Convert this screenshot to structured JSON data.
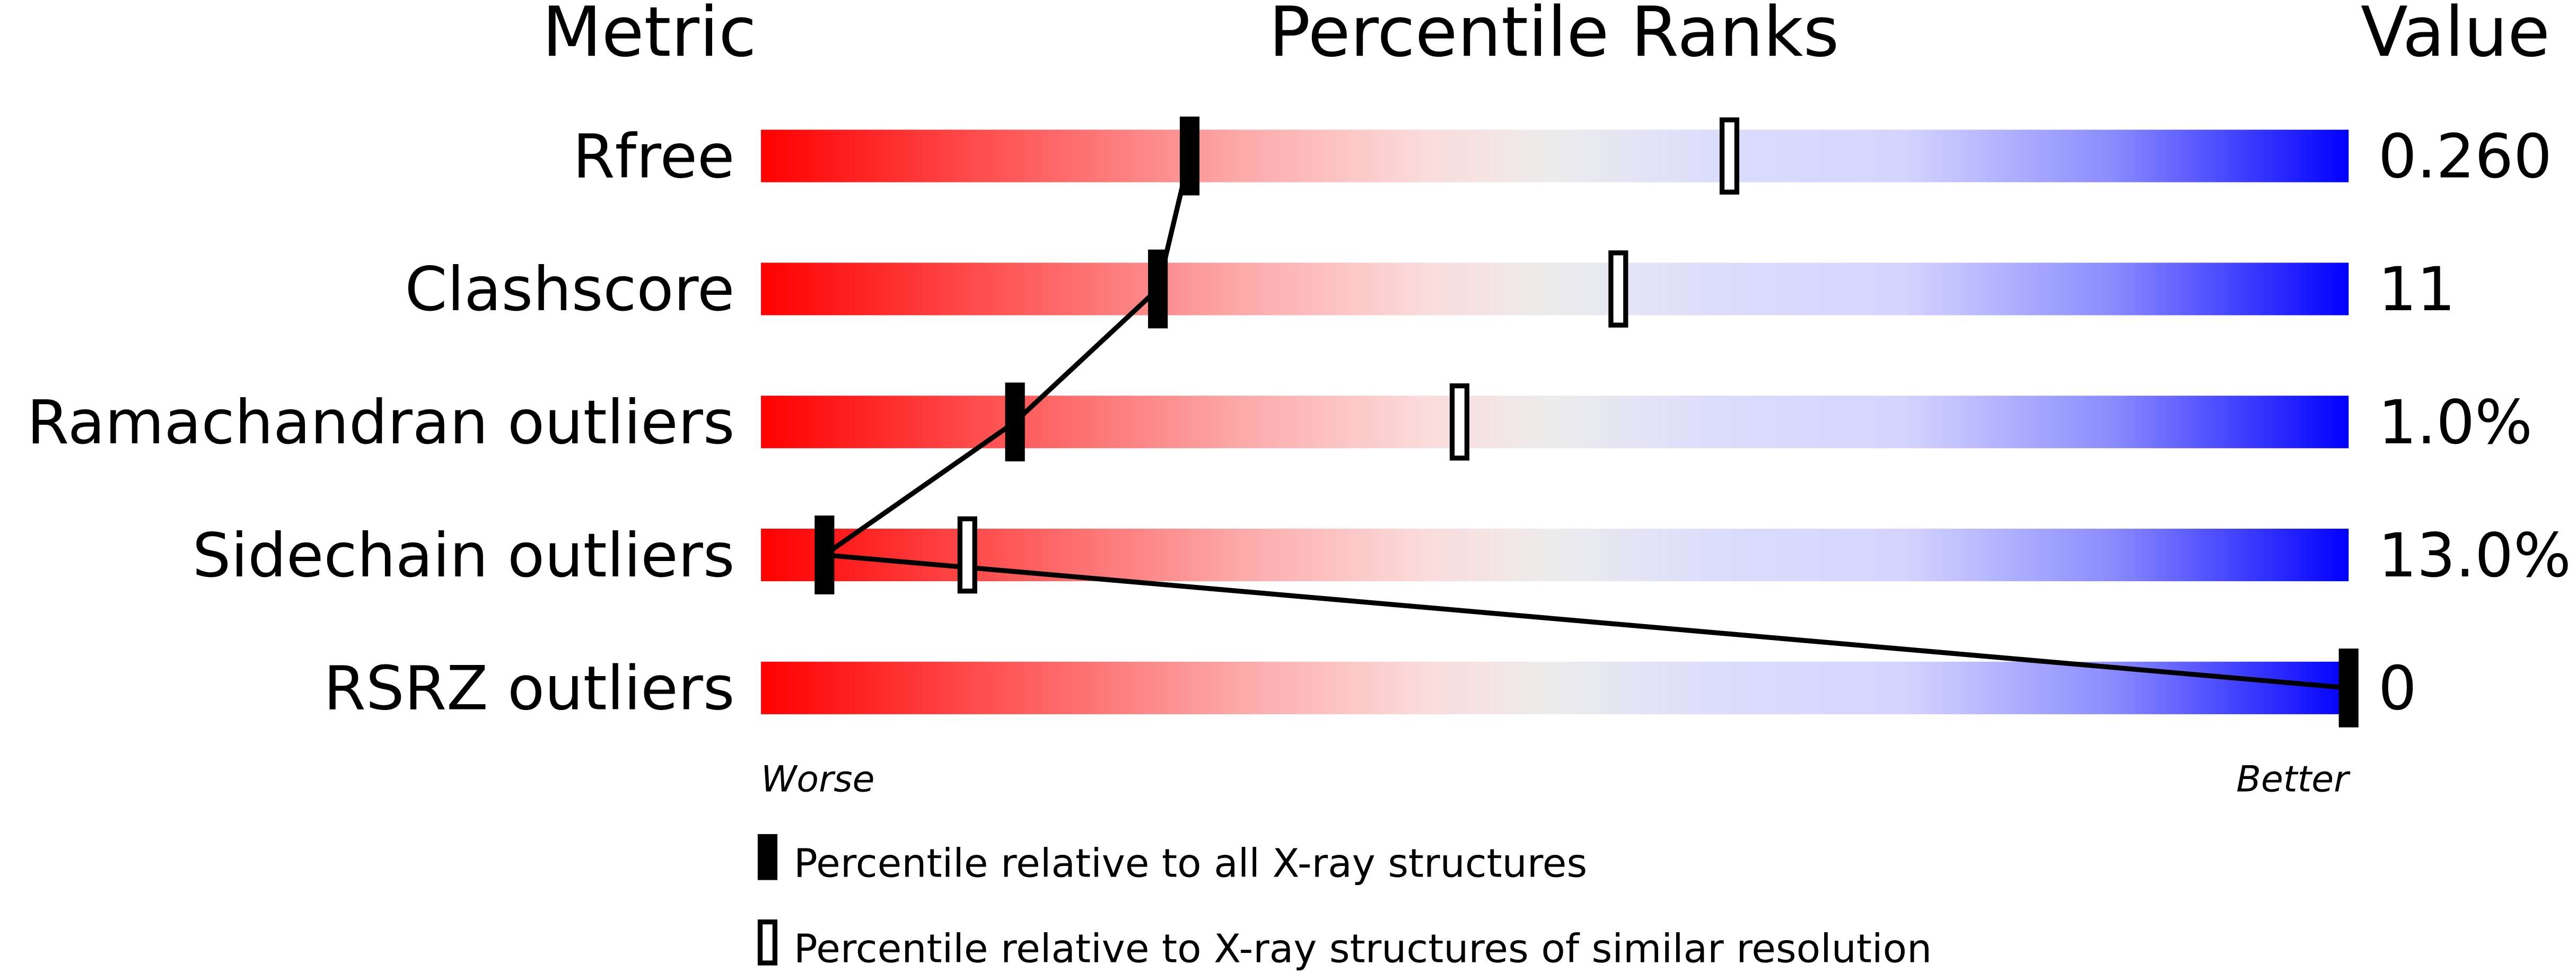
{
  "chart_data": {
    "type": "percentile-bar",
    "headers": {
      "metric": "Metric",
      "ranks": "Percentile Ranks",
      "value": "Value"
    },
    "xlim": [
      0,
      100
    ],
    "axis_labels": {
      "left": "Worse",
      "right": "Better"
    },
    "colors": {
      "worse": "#ff0000",
      "middle": "#eeeeee",
      "better": "#0000ff",
      "marker": "#000000"
    },
    "metrics": [
      {
        "name": "Rfree",
        "value": "0.260",
        "percentile_all": 27,
        "percentile_similar": 61
      },
      {
        "name": "Clashscore",
        "value": "11",
        "percentile_all": 25,
        "percentile_similar": 54
      },
      {
        "name": "Ramachandran outliers",
        "value": "1.0%",
        "percentile_all": 16,
        "percentile_similar": 44
      },
      {
        "name": "Sidechain outliers",
        "value": "13.0%",
        "percentile_all": 4,
        "percentile_similar": 13
      },
      {
        "name": "RSRZ outliers",
        "value": "0",
        "percentile_all": 100,
        "percentile_similar": null
      }
    ],
    "legend": [
      {
        "marker": "filled",
        "label": "Percentile relative to all X-ray structures"
      },
      {
        "marker": "hollow",
        "label": "Percentile relative to X-ray structures of similar resolution"
      }
    ]
  }
}
